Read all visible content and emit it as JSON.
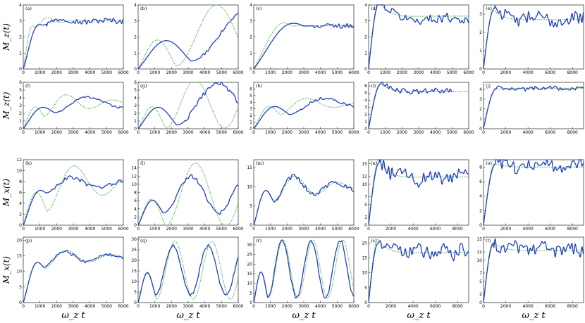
{
  "figure": {
    "row_ylabels": [
      "M_z(t)",
      "M_z(t)",
      "M_x(t)",
      "M_x(t)"
    ],
    "col_xlabel": "ω_z t"
  },
  "chart_data": [
    {
      "id": "a",
      "type": "line",
      "xlim": [
        0,
        6000
      ],
      "ylim": [
        0,
        4
      ],
      "xticks": [
        0,
        1000,
        2000,
        3000,
        4000,
        5000,
        6000
      ],
      "yticks": [
        0,
        1,
        2,
        3,
        4
      ],
      "kind": "osc",
      "p": [
        0.0,
        3.5,
        0.9,
        3.9,
        0.5,
        1800,
        3.0,
        2.6,
        0.9,
        0.2,
        1.6,
        0.0,
        6.0
      ]
    },
    {
      "id": "b",
      "type": "line",
      "xlim": [
        0,
        6000
      ],
      "ylim": [
        0,
        4
      ],
      "xticks": [
        0,
        1000,
        2000,
        3000,
        4000,
        5000,
        6000
      ],
      "yticks": [
        0,
        1,
        2,
        3,
        4
      ],
      "kind": "osc",
      "p": [
        0.0,
        3.7,
        0.9,
        4.0,
        0.75,
        1000000000.0,
        2.1,
        0.95,
        0.92,
        0.1,
        1.4,
        0.0,
        6.0
      ]
    },
    {
      "id": "c",
      "type": "line",
      "xlim": [
        0,
        6000
      ],
      "ylim": [
        0,
        4
      ],
      "xticks": [
        0,
        1000,
        2000,
        3000,
        4000,
        5000,
        6000
      ],
      "yticks": [
        0,
        1,
        2,
        3,
        4
      ],
      "kind": "osc",
      "p": [
        0.0,
        4.2,
        0.9,
        4.3,
        0.6,
        700,
        2.7,
        1.0,
        0.95,
        0.15,
        1.3,
        0.06,
        6.0
      ]
    },
    {
      "id": "d",
      "type": "line",
      "xlim": [
        0,
        6000
      ],
      "ylim": [
        0,
        4
      ],
      "xticks": [
        0,
        1000,
        2000,
        3000,
        4000,
        5000,
        6000
      ],
      "yticks": [
        0,
        1,
        2,
        3,
        4
      ],
      "kind": "relax",
      "p": [
        4.2,
        4.2,
        3.1,
        3.3,
        1.5,
        300,
        0.9,
        1.6,
        0.2
      ]
    },
    {
      "id": "e",
      "type": "line",
      "xlim": [
        0,
        9000
      ],
      "ylim": [
        0,
        3.5
      ],
      "xticks": [
        0,
        2000,
        4000,
        6000,
        8000
      ],
      "yticks": [
        0,
        1,
        2,
        3
      ],
      "kind": "relax",
      "p": [
        3.3,
        3.2,
        2.7,
        2.7,
        2.0,
        550,
        0.9,
        2.4,
        0.32
      ]
    },
    {
      "id": "f",
      "type": "line",
      "xlim": [
        0,
        6000
      ],
      "ylim": [
        0,
        6
      ],
      "xticks": [
        0,
        1000,
        2000,
        3000,
        4000,
        5000,
        6000
      ],
      "yticks": [
        0,
        1,
        2,
        3,
        4,
        5,
        6
      ],
      "kind": "osc",
      "p": [
        0.0,
        5.1,
        0.95,
        5.9,
        0.7,
        5000,
        3.3,
        1.6,
        0.9,
        0.12,
        1.5,
        0.0,
        7.5
      ]
    },
    {
      "id": "g",
      "type": "line",
      "xlim": [
        0,
        6000
      ],
      "ylim": [
        0,
        6
      ],
      "xticks": [
        0,
        1000,
        2000,
        3000,
        4000,
        5000,
        6000
      ],
      "yticks": [
        0,
        1,
        2,
        3,
        4,
        5,
        6
      ],
      "kind": "osc",
      "p": [
        0.0,
        5.9,
        0.93,
        6.3,
        0.9,
        1000000000.0,
        3.2,
        1.3,
        0.93,
        0.2,
        1.4,
        0.0,
        7.5
      ]
    },
    {
      "id": "h",
      "type": "line",
      "xlim": [
        0,
        6000
      ],
      "ylim": [
        0,
        7
      ],
      "xticks": [
        0,
        1000,
        2000,
        3000,
        4000,
        5000,
        6000
      ],
      "yticks": [
        0,
        1,
        2,
        3,
        4,
        5,
        6
      ],
      "kind": "osc",
      "p": [
        0.0,
        6.4,
        0.94,
        6.6,
        0.9,
        4000,
        3.7,
        1.4,
        0.95,
        0.12,
        1.35,
        0.02,
        7.5
      ]
    },
    {
      "id": "i",
      "type": "line",
      "xlim": [
        0,
        6000
      ],
      "ylim": [
        0,
        6.5
      ],
      "xticks": [
        0,
        1000,
        2000,
        3000,
        4000,
        5000,
        6000
      ],
      "yticks": [
        0,
        1,
        2,
        3,
        4,
        5,
        6
      ],
      "kind": "relax",
      "p": [
        6.3,
        6.3,
        5.2,
        5.2,
        1.6,
        300,
        1.05,
        1.8,
        0.18
      ],
      "cutoff": 5000
    },
    {
      "id": "j",
      "type": "line",
      "xlim": [
        0,
        9000
      ],
      "ylim": [
        0,
        4.7
      ],
      "xticks": [
        0,
        2000,
        4000,
        6000,
        8000
      ],
      "yticks": [
        0,
        1,
        2,
        3,
        4
      ],
      "kind": "relax",
      "p": [
        4.1,
        4.0,
        4.1,
        4.1,
        1.5,
        0,
        1.1,
        2.0,
        0.15
      ]
    },
    {
      "id": "k",
      "type": "line",
      "xlim": [
        0,
        6000
      ],
      "ylim": [
        0,
        12
      ],
      "xticks": [
        0,
        1000,
        2000,
        3000,
        4000,
        5000,
        6000
      ],
      "yticks": [
        0,
        2,
        4,
        6,
        8,
        10,
        12
      ],
      "kind": "osc",
      "p": [
        0.0,
        10.0,
        0.9,
        15.0,
        1.0,
        4000,
        7.6,
        2.2,
        0.85,
        0.15,
        0.95,
        0.0,
        20
      ]
    },
    {
      "id": "l",
      "type": "line",
      "xlim": [
        0,
        6000
      ],
      "ylim": [
        0,
        16
      ],
      "xticks": [
        0,
        1000,
        2000,
        3000,
        4000,
        5000,
        6000
      ],
      "yticks": [
        0,
        2,
        4,
        6,
        8,
        10,
        12,
        14
      ],
      "kind": "osc",
      "p": [
        0.0,
        12.0,
        0.92,
        15.2,
        1.1,
        1000000000.0,
        7.5,
        2.0,
        0.9,
        0.15,
        0.92,
        0.0,
        20
      ]
    },
    {
      "id": "m",
      "type": "line",
      "xlim": [
        0,
        6000
      ],
      "ylim": [
        0,
        17
      ],
      "xticks": [
        0,
        1000,
        2000,
        3000,
        4000,
        5000,
        6000
      ],
      "yticks": [
        0,
        5,
        10,
        15
      ],
      "kind": "osc",
      "p": [
        0.0,
        15.7,
        0.95,
        16.3,
        1.2,
        3200,
        10.0,
        2.5,
        0.97,
        0.15,
        0.97,
        0.03,
        20
      ]
    },
    {
      "id": "n",
      "type": "line",
      "xlim": [
        0,
        9000
      ],
      "ylim": [
        0,
        16
      ],
      "xticks": [
        0,
        2000,
        4000,
        6000,
        8000
      ],
      "yticks": [
        0,
        2,
        5,
        7,
        10,
        12,
        15
      ],
      "ytick_labels": [
        "0",
        "2",
        "5",
        "7",
        "10",
        "12",
        "15"
      ],
      "kind": "relax",
      "p": [
        15.3,
        16.0,
        11.5,
        11.8,
        2.3,
        650,
        0.9,
        3.5,
        0.35
      ]
    },
    {
      "id": "o",
      "type": "line",
      "xlim": [
        0,
        9000
      ],
      "ylim": [
        0,
        9
      ],
      "xticks": [
        0,
        2000,
        4000,
        6000,
        8000
      ],
      "yticks": [
        0,
        2,
        4,
        6,
        8
      ],
      "kind": "relax",
      "p": [
        8.4,
        8.5,
        8.2,
        8.0,
        3.0,
        400,
        1.0,
        2.3,
        0.3
      ]
    },
    {
      "id": "p",
      "type": "line",
      "xlim": [
        0,
        6000
      ],
      "ylim": [
        0,
        21
      ],
      "xticks": [
        0,
        1000,
        2000,
        3000,
        4000,
        5000,
        6000
      ],
      "yticks": [
        0,
        5,
        10,
        15,
        20
      ],
      "kind": "osc",
      "p": [
        0.0,
        19.3,
        0.95,
        20.2,
        1.5,
        3000,
        14.5,
        2.45,
        0.95,
        0.1,
        0.95,
        0.0,
        25
      ]
    },
    {
      "id": "q",
      "type": "line",
      "xlim": [
        0,
        6000
      ],
      "ylim": [
        0,
        31
      ],
      "xticks": [
        0,
        1000,
        2000,
        3000,
        4000,
        5000,
        6000
      ],
      "yticks": [
        0,
        5,
        10,
        15,
        20,
        25,
        30
      ],
      "kind": "osc",
      "p": [
        0.0,
        27.0,
        0.96,
        29.0,
        1.8,
        1000000000.0,
        15.3,
        2.9,
        0.98,
        0.1,
        0.95,
        0.0,
        25
      ]
    },
    {
      "id": "r",
      "type": "line",
      "xlim": [
        0,
        6000
      ],
      "ylim": [
        0,
        34
      ],
      "xticks": [
        0,
        1000,
        2000,
        3000,
        4000,
        5000,
        6000
      ],
      "yticks": [
        0,
        5,
        10,
        15,
        20,
        25,
        30
      ],
      "kind": "osc",
      "p": [
        0.0,
        32.3,
        0.95,
        32.5,
        1.9,
        1000000000.0,
        17.5,
        3.6,
        0.96,
        0.1,
        0.97,
        0.04,
        25
      ]
    },
    {
      "id": "s",
      "type": "line",
      "xlim": [
        0,
        9000
      ],
      "ylim": [
        0,
        22
      ],
      "xticks": [
        0,
        2000,
        4000,
        6000,
        8000
      ],
      "yticks": [
        0,
        5,
        10,
        15,
        20
      ],
      "kind": "relax",
      "p": [
        20.0,
        21.3,
        17.0,
        16.8,
        3.3,
        400,
        0.8,
        4.5,
        0.35
      ]
    },
    {
      "id": "t",
      "type": "line",
      "xlim": [
        0,
        9000
      ],
      "ylim": [
        0,
        15.5
      ],
      "xticks": [
        0,
        2000,
        4000,
        6000,
        8000
      ],
      "yticks": [
        0,
        2,
        5,
        7,
        10,
        12,
        15
      ],
      "ytick_labels": [
        "0",
        "2",
        "5",
        "7",
        "10",
        "12",
        "15"
      ],
      "kind": "relax",
      "p": [
        14.0,
        14.3,
        12.7,
        12.4,
        2.0,
        400,
        0.85,
        3.8,
        0.35
      ]
    }
  ]
}
